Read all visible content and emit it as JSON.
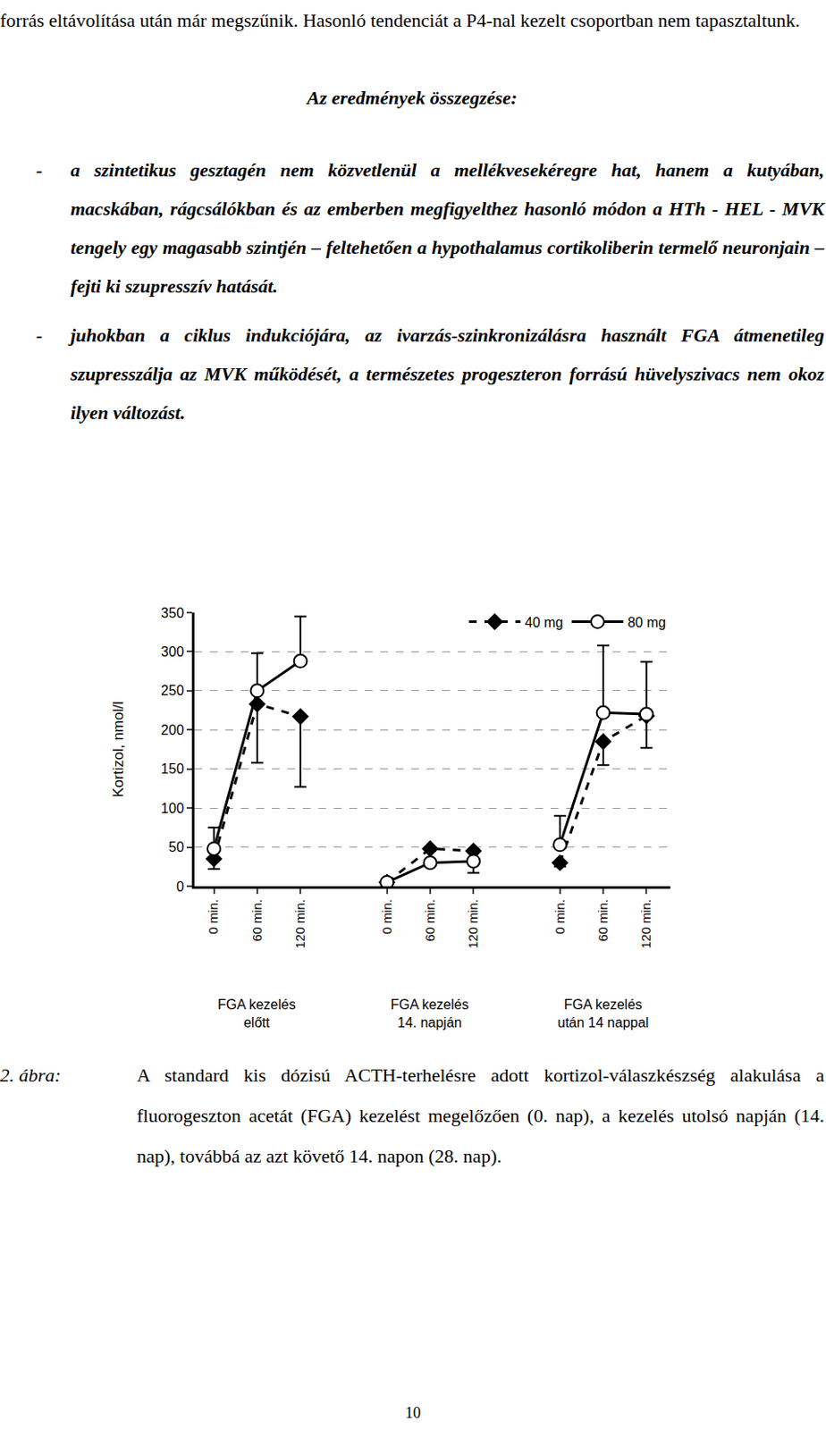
{
  "document": {
    "paragraph": "forrás eltávolítása után már megszűnik. Hasonló tendenciát a P4-nal kezelt csoportban nem tapasztaltunk.",
    "heading": "Az eredmények összegzése:",
    "bullet_marker": "-",
    "bullets": [
      "a szintetikus gesztagén nem közvetlenül a mellékvesekéregre hat, hanem a kutyában, macskában, rágcsálókban és az emberben megfigyelthez hasonló módon a HTh - HEL - MVK tengely egy magasabb szintjén – feltehetően a hypothalamus cortikoliberin termelő neuronjain – fejti ki szupresszív hatását.",
      "juhokban a ciklus indukciójára, az ivarzás-szinkronizálásra használt FGA átmenetileg szupresszálja az MVK működését, a természetes progeszteron forrású hüvelyszivacs nem okoz ilyen változást."
    ],
    "caption": {
      "label": "2. ábra:",
      "text": "A standard kis dózisú ACTH-terhelésre adott kortizol-válaszkészség alakulása a fluorogeszton acetát (FGA) kezelést megelőzően (0. nap), a kezelés utolsó napján (14. nap), továbbá az azt követő 14. napon (28. nap)."
    },
    "page_number": "10"
  },
  "chart_data": {
    "type": "line",
    "y_label": "Kortizol, nmol/l",
    "categories": [
      "0 min.",
      "60 min.",
      "120 min.",
      null,
      "0 min.",
      "60 min.",
      "120 min.",
      null,
      "0 min.",
      "60 min.",
      "120 min."
    ],
    "groups": [
      [
        "FGA kezelés",
        "előtt"
      ],
      [
        "FGA kezelés",
        "14. napján"
      ],
      [
        "FGA kezelés",
        "után 14 nappal"
      ]
    ],
    "series": [
      {
        "name": "40 mg",
        "color": "#000000",
        "marker": "diamond",
        "line_style": "dash",
        "values": [
          35,
          233,
          217,
          null,
          5,
          48,
          45,
          null,
          30,
          185,
          218
        ],
        "errors_down": [
          13,
          75,
          90,
          null,
          0,
          20,
          28,
          null,
          5,
          30,
          41
        ]
      },
      {
        "name": "80 mg",
        "color": "#000000",
        "marker": "circle-open",
        "line_style": "solid",
        "values": [
          48,
          250,
          288,
          null,
          5,
          30,
          32,
          null,
          53,
          222,
          220
        ],
        "errors_up": [
          27,
          48,
          57,
          null,
          0,
          15,
          15,
          null,
          37,
          86,
          67
        ]
      }
    ],
    "ylim": [
      0,
      350
    ],
    "yticks": [
      0,
      50,
      100,
      150,
      200,
      250,
      300,
      350
    ],
    "grid": true,
    "legend": "top right"
  }
}
